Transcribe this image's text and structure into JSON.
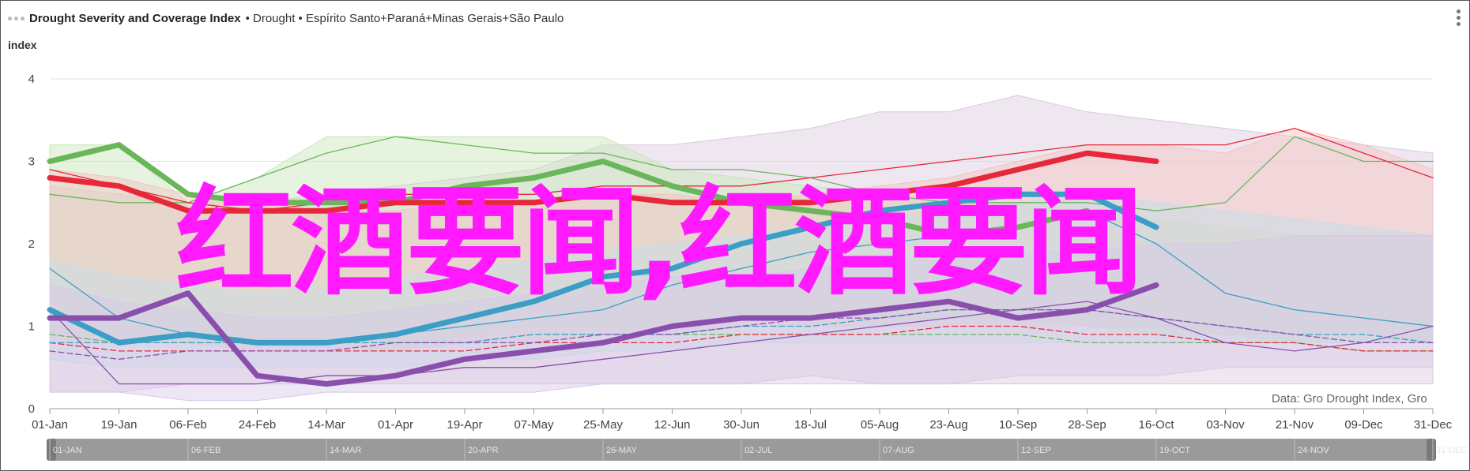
{
  "header": {
    "title": "Drought Severity and Coverage Index",
    "subtitle": "• Drought • Espírito Santo+Paraná+Minas Gerais+São Paulo"
  },
  "watermark": "红酒要闻,红酒要闻",
  "credit": "Data: Gro Drought Index, Gro",
  "chart_data": {
    "type": "line",
    "ylabel": "index",
    "ylim": [
      0,
      4
    ],
    "yticks": [
      "0",
      "1",
      "2",
      "3",
      "4"
    ],
    "xticks": [
      "01-Jan",
      "19-Jan",
      "06-Feb",
      "24-Feb",
      "14-Mar",
      "01-Apr",
      "19-Apr",
      "07-May",
      "25-May",
      "12-Jun",
      "30-Jun",
      "18-Jul",
      "05-Aug",
      "23-Aug",
      "10-Sep",
      "28-Sep",
      "16-Oct",
      "03-Nov",
      "21-Nov",
      "09-Dec",
      "31-Dec"
    ],
    "navigator_ticks": [
      "01-JAN",
      "06-FEB",
      "14-MAR",
      "20-APR",
      "26-MAY",
      "02-JUL",
      "07-AUG",
      "12-SEP",
      "19-OCT",
      "24-NOV",
      "31-DEC"
    ],
    "grid": true,
    "bands": [
      {
        "color": "#d9c9dc",
        "min": [
          0.2,
          0.2,
          0.3,
          0.3,
          0.3,
          0.3,
          0.3,
          0.3,
          0.3,
          0.3,
          0.3,
          0.4,
          0.3,
          0.3,
          0.3,
          0.3,
          0.3,
          0.3,
          0.3,
          0.3,
          0.3
        ],
        "max": [
          2.7,
          2.6,
          2.5,
          2.5,
          2.6,
          2.7,
          2.8,
          2.9,
          3.2,
          3.2,
          3.3,
          3.4,
          3.6,
          3.6,
          3.8,
          3.6,
          3.5,
          3.4,
          3.3,
          3.2,
          3.1
        ]
      },
      {
        "color": "#c7e6b8",
        "min": [
          0.9,
          0.8,
          0.8,
          0.8,
          0.8,
          0.7,
          0.9,
          1.0,
          1.0,
          1.0,
          1.1,
          1.1,
          1.1,
          1.1,
          1.1,
          1.0,
          0.9,
          0.9,
          0.8,
          0.8,
          0.8
        ],
        "max": [
          3.2,
          3.2,
          2.5,
          2.8,
          3.3,
          3.3,
          3.3,
          3.3,
          3.3,
          2.9,
          2.8,
          2.7,
          2.6,
          2.5,
          2.5,
          2.4,
          2.3,
          2.2,
          2.1,
          2.0,
          2.0
        ]
      },
      {
        "color": "#f4c2c2",
        "min": [
          0.8,
          0.8,
          0.8,
          0.7,
          0.7,
          0.7,
          0.8,
          0.8,
          0.9,
          0.9,
          1.0,
          1.0,
          1.0,
          1.0,
          1.0,
          1.0,
          1.0,
          0.9,
          0.9,
          0.9,
          0.8
        ],
        "max": [
          2.9,
          2.8,
          2.6,
          2.5,
          2.4,
          2.4,
          2.5,
          2.5,
          2.6,
          2.6,
          2.5,
          2.6,
          2.7,
          2.8,
          3.0,
          3.2,
          3.2,
          3.1,
          3.4,
          3.2,
          2.9
        ]
      },
      {
        "color": "#c3dfe9",
        "min": [
          0.6,
          0.5,
          0.5,
          0.5,
          0.5,
          0.5,
          0.6,
          0.6,
          0.7,
          0.7,
          0.8,
          0.8,
          0.8,
          0.8,
          0.8,
          0.8,
          0.8,
          0.8,
          0.8,
          0.8,
          0.8
        ],
        "max": [
          1.8,
          1.6,
          1.5,
          1.4,
          1.5,
          1.6,
          1.7,
          1.8,
          1.9,
          2.0,
          2.1,
          2.2,
          2.3,
          2.4,
          2.5,
          2.6,
          2.5,
          2.4,
          2.3,
          2.2,
          2.1
        ]
      },
      {
        "color": "#d8c8e6",
        "min": [
          0.2,
          0.2,
          0.1,
          0.1,
          0.2,
          0.2,
          0.2,
          0.2,
          0.3,
          0.3,
          0.3,
          0.3,
          0.3,
          0.3,
          0.4,
          0.4,
          0.4,
          0.5,
          0.5,
          0.5,
          0.5
        ],
        "max": [
          1.5,
          1.3,
          1.2,
          1.1,
          1.1,
          1.2,
          1.3,
          1.4,
          1.5,
          1.6,
          1.6,
          1.7,
          1.8,
          1.8,
          1.9,
          1.9,
          2.0,
          2.0,
          2.1,
          2.1,
          2.1
        ]
      }
    ],
    "series": [
      {
        "color": "#6ab65a",
        "style": "bold",
        "values": [
          3.0,
          3.2,
          2.6,
          2.5,
          2.5,
          2.5,
          2.7,
          2.8,
          3.0,
          2.7,
          2.5,
          2.4,
          2.3,
          2.1,
          2.2,
          2.4,
          null,
          null,
          null,
          null,
          null
        ]
      },
      {
        "color": "#e6283a",
        "style": "bold",
        "values": [
          2.8,
          2.7,
          2.4,
          2.4,
          2.4,
          2.5,
          2.5,
          2.5,
          2.6,
          2.5,
          2.5,
          2.5,
          2.6,
          2.7,
          2.9,
          3.1,
          3.0,
          null,
          null,
          null,
          null
        ]
      },
      {
        "color": "#3a9ec6",
        "style": "bold",
        "values": [
          1.2,
          0.8,
          0.9,
          0.8,
          0.8,
          0.9,
          1.1,
          1.3,
          1.6,
          1.7,
          2.0,
          2.2,
          2.4,
          2.5,
          2.6,
          2.6,
          2.2,
          null,
          null,
          null,
          null
        ]
      },
      {
        "color": "#8a4fad",
        "style": "bold",
        "values": [
          1.1,
          1.1,
          1.4,
          0.4,
          0.3,
          0.4,
          0.6,
          0.7,
          0.8,
          1.0,
          1.1,
          1.1,
          1.2,
          1.3,
          1.1,
          1.2,
          1.5,
          null,
          null,
          null,
          null
        ]
      },
      {
        "color": "#6ab65a",
        "style": "thin",
        "values": [
          2.6,
          2.5,
          2.5,
          2.8,
          3.1,
          3.3,
          3.2,
          3.1,
          3.1,
          2.9,
          2.9,
          2.8,
          2.6,
          2.5,
          2.5,
          2.5,
          2.4,
          2.5,
          3.3,
          3.0,
          3.0
        ]
      },
      {
        "color": "#e6283a",
        "style": "thin",
        "values": [
          2.9,
          2.7,
          2.5,
          2.4,
          2.5,
          2.6,
          2.6,
          2.6,
          2.7,
          2.7,
          2.7,
          2.8,
          2.9,
          3.0,
          3.1,
          3.2,
          3.2,
          3.2,
          3.4,
          3.1,
          2.8
        ]
      },
      {
        "color": "#3a9ec6",
        "style": "thin",
        "values": [
          1.7,
          1.1,
          0.9,
          0.8,
          0.8,
          0.9,
          1.0,
          1.1,
          1.2,
          1.5,
          1.7,
          1.9,
          2.0,
          2.1,
          2.2,
          2.4,
          2.0,
          1.4,
          1.2,
          1.1,
          1.0
        ]
      },
      {
        "color": "#8a4fad",
        "style": "thin",
        "values": [
          1.2,
          0.3,
          0.3,
          0.3,
          0.4,
          0.4,
          0.5,
          0.5,
          0.6,
          0.7,
          0.8,
          0.9,
          1.0,
          1.1,
          1.2,
          1.3,
          1.1,
          0.8,
          0.7,
          0.8,
          1.0
        ]
      },
      {
        "color": "#6ab65a",
        "style": "dash",
        "values": [
          0.9,
          0.8,
          0.8,
          0.8,
          0.8,
          0.8,
          0.8,
          0.9,
          0.9,
          0.9,
          0.9,
          0.9,
          0.9,
          0.9,
          0.9,
          0.8,
          0.8,
          0.8,
          0.8,
          0.7,
          0.7
        ]
      },
      {
        "color": "#e6283a",
        "style": "dash",
        "values": [
          0.8,
          0.7,
          0.7,
          0.7,
          0.7,
          0.7,
          0.7,
          0.8,
          0.8,
          0.8,
          0.9,
          0.9,
          0.9,
          1.0,
          1.0,
          0.9,
          0.9,
          0.8,
          0.8,
          0.7,
          0.7
        ]
      },
      {
        "color": "#3a9ec6",
        "style": "dash",
        "values": [
          0.8,
          0.8,
          0.8,
          0.8,
          0.8,
          0.8,
          0.8,
          0.9,
          0.9,
          0.9,
          1.0,
          1.0,
          1.1,
          1.2,
          1.2,
          1.2,
          1.1,
          1.0,
          0.9,
          0.9,
          0.8
        ]
      },
      {
        "color": "#8a4fad",
        "style": "dash",
        "values": [
          0.7,
          0.6,
          0.7,
          0.7,
          0.7,
          0.8,
          0.8,
          0.8,
          0.9,
          0.9,
          1.0,
          1.1,
          1.1,
          1.2,
          1.2,
          1.2,
          1.1,
          1.0,
          0.9,
          0.8,
          0.8
        ]
      }
    ]
  }
}
